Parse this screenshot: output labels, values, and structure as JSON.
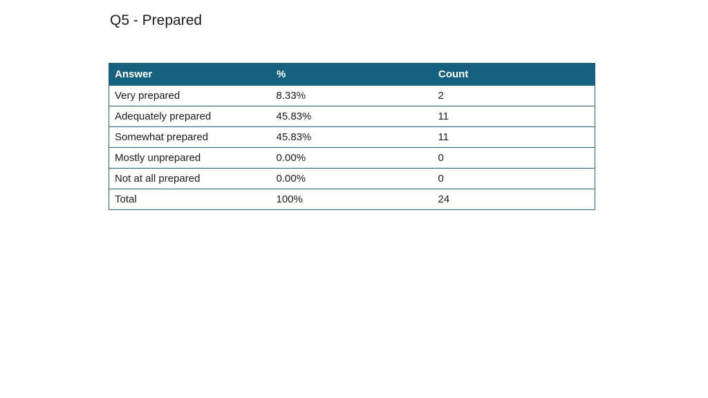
{
  "title": "Q5 - Prepared",
  "table": {
    "headers": {
      "answer": "Answer",
      "percent": "%",
      "count": "Count"
    },
    "rows": [
      {
        "answer": "Very prepared",
        "percent": "8.33%",
        "count": "2"
      },
      {
        "answer": "Adequately prepared",
        "percent": "45.83%",
        "count": "11"
      },
      {
        "answer": "Somewhat prepared",
        "percent": "45.83%",
        "count": "11"
      },
      {
        "answer": "Mostly unprepared",
        "percent": "0.00%",
        "count": "0"
      },
      {
        "answer": "Not at all prepared",
        "percent": "0.00%",
        "count": "0"
      },
      {
        "answer": "Total",
        "percent": "100%",
        "count": "24"
      }
    ]
  },
  "colors": {
    "header_background": "#17607f",
    "border": "#17607f",
    "header_text": "#ffffff"
  }
}
